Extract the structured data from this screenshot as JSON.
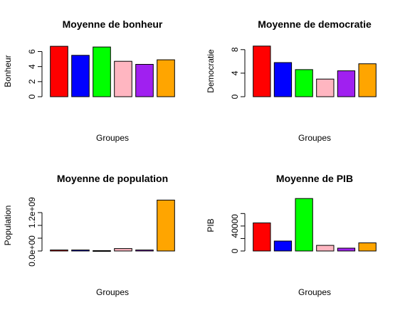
{
  "chart_data": [
    {
      "type": "bar",
      "title": "Moyenne de bonheur",
      "xlabel": "Groupes",
      "ylabel": "Bonheur",
      "ylim": [
        0,
        6.8
      ],
      "yticks": [
        "0",
        "2",
        "4",
        "6"
      ],
      "categories": [
        "",
        "",
        "",
        "",
        "",
        ""
      ],
      "values": [
        6.7,
        5.5,
        6.6,
        4.7,
        4.3,
        4.9
      ],
      "colors": [
        "#ff0000",
        "#0000ff",
        "#00ff00",
        "#ffb6c1",
        "#a020f0",
        "#ffa500"
      ],
      "grid": false,
      "legend": "none"
    },
    {
      "type": "bar",
      "title": "Moyenne de democratie",
      "xlabel": "Groupes",
      "ylabel": "Democratie",
      "ylim": [
        0,
        8.7
      ],
      "yticks": [
        "0",
        "4",
        "8"
      ],
      "categories": [
        "",
        "",
        "",
        "",
        "",
        ""
      ],
      "values": [
        8.6,
        5.8,
        4.6,
        3.0,
        4.4,
        5.6
      ],
      "colors": [
        "#ff0000",
        "#0000ff",
        "#00ff00",
        "#ffb6c1",
        "#a020f0",
        "#ffa500"
      ],
      "grid": false,
      "legend": "none"
    },
    {
      "type": "bar",
      "title": "Moyenne de population",
      "xlabel": "Groupes",
      "ylabel": "Population",
      "ylim": [
        0,
        1600000000
      ],
      "yticks": [
        "0.0e+00",
        "",
        "",
        "1.2e+09"
      ],
      "categories": [
        "",
        "",
        "",
        "",
        "",
        ""
      ],
      "values": [
        30000000,
        30000000,
        12000000,
        75000000,
        30000000,
        1590000000
      ],
      "colors": [
        "#ff0000",
        "#0000ff",
        "#00ff00",
        "#ffb6c1",
        "#a020f0",
        "#ffa500"
      ],
      "grid": false,
      "legend": "none"
    },
    {
      "type": "bar",
      "title": "Moyenne de PIB",
      "xlabel": "Groupes",
      "ylabel": "PIB",
      "ylim": [
        0,
        82000
      ],
      "yticks": [
        "0",
        "",
        "40000",
        ""
      ],
      "categories": [
        "",
        "",
        "",
        "",
        "",
        ""
      ],
      "values": [
        45000,
        16000,
        84000,
        9000,
        4500,
        13000
      ],
      "colors": [
        "#ff0000",
        "#0000ff",
        "#00ff00",
        "#ffb6c1",
        "#a020f0",
        "#ffa500"
      ],
      "grid": false,
      "legend": "none"
    }
  ]
}
